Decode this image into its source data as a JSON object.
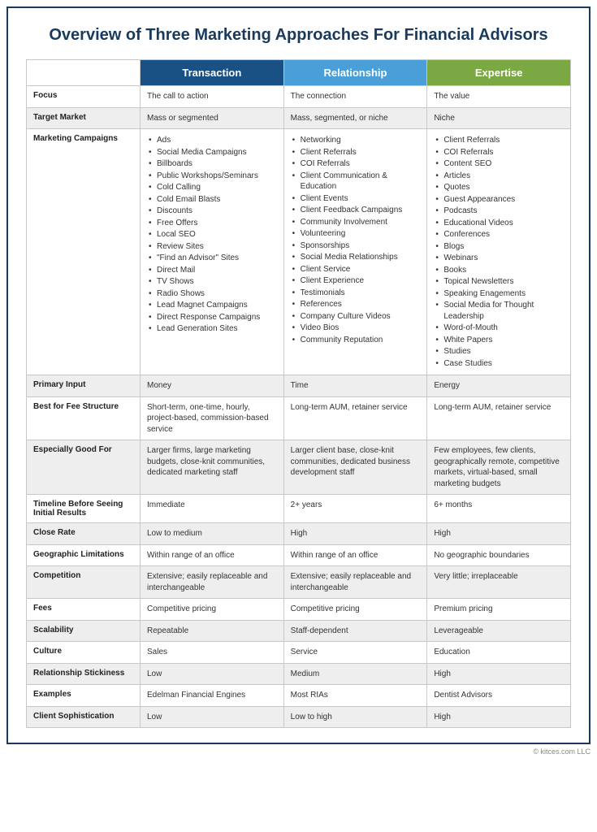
{
  "title": "Overview of Three Marketing Approaches For Financial Advisors",
  "copyright": "© kitces.com LLC",
  "colors": {
    "frame_border": "#1a3a5c",
    "title_color": "#1a3a5c",
    "header_transaction": "#1a5184",
    "header_relationship": "#4a9fd8",
    "header_expertise": "#7ba843",
    "row_shade": "#eeeeee",
    "cell_border": "#c8c8c8"
  },
  "column_widths": [
    "140px",
    "auto",
    "auto",
    "auto"
  ],
  "columns": [
    "Transaction",
    "Relationship",
    "Expertise"
  ],
  "rows": [
    {
      "label": "Focus",
      "shade": false,
      "type": "text",
      "cells": [
        "The call to action",
        "The connection",
        "The value"
      ]
    },
    {
      "label": "Target Market",
      "shade": true,
      "type": "text",
      "cells": [
        "Mass or segmented",
        "Mass, segmented, or niche",
        "Niche"
      ]
    },
    {
      "label": "Marketing Campaigns",
      "shade": false,
      "type": "list",
      "cells": [
        [
          "Ads",
          "Social Media Campaigns",
          "Billboards",
          "Public Workshops/Seminars",
          "Cold Calling",
          "Cold Email Blasts",
          "Discounts",
          "Free Offers",
          "Local SEO",
          "Review Sites",
          "\"Find an Advisor\" Sites",
          "Direct Mail",
          "TV Shows",
          "Radio Shows",
          "Lead Magnet Campaigns",
          "Direct Response Campaigns",
          "Lead Generation Sites"
        ],
        [
          "Networking",
          "Client Referrals",
          "COI Referrals",
          "Client Communication & Education",
          "Client Events",
          "Client Feedback Campaigns",
          "Community Involvement",
          "Volunteering",
          "Sponsorships",
          "Social Media Relationships",
          "Client Service",
          "Client Experience",
          "Testimonials",
          "References",
          "Company Culture Videos",
          "Video Bios",
          "Community Reputation"
        ],
        [
          "Client Referrals",
          "COI Referrals",
          "Content SEO",
          "Articles",
          "Quotes",
          "Guest Appearances",
          "Podcasts",
          "Educational Videos",
          "Conferences",
          "Blogs",
          "Webinars",
          "Books",
          "Topical Newsletters",
          "Speaking Enagements",
          "Social Media for Thought Leadership",
          "Word-of-Mouth",
          "White Papers",
          "Studies",
          "Case Studies"
        ]
      ]
    },
    {
      "label": "Primary Input",
      "shade": true,
      "type": "text",
      "cells": [
        "Money",
        "Time",
        "Energy"
      ]
    },
    {
      "label": "Best for Fee Structure",
      "shade": false,
      "type": "text",
      "cells": [
        "Short-term, one-time, hourly, project-based, commission-based service",
        "Long-term AUM, retainer service",
        "Long-term AUM, retainer service"
      ]
    },
    {
      "label": "Especially Good For",
      "shade": true,
      "type": "text",
      "cells": [
        "Larger firms, large marketing budgets, close-knit communities, dedicated marketing staff",
        "Larger client base, close-knit communities, dedicated business development staff",
        "Few employees, few clients, geographically remote, competitive markets, virtual-based, small marketing budgets"
      ]
    },
    {
      "label": "Timeline Before Seeing Initial Results",
      "shade": false,
      "type": "text",
      "cells": [
        "Immediate",
        "2+ years",
        "6+ months"
      ]
    },
    {
      "label": "Close Rate",
      "shade": true,
      "type": "text",
      "cells": [
        "Low to medium",
        "High",
        "High"
      ]
    },
    {
      "label": "Geographic Limitations",
      "shade": false,
      "type": "text",
      "cells": [
        "Within range of an office",
        "Within range of an office",
        "No geographic boundaries"
      ]
    },
    {
      "label": "Competition",
      "shade": true,
      "type": "text",
      "cells": [
        "Extensive; easily replaceable and interchangeable",
        "Extensive; easily replaceable and interchangeable",
        "Very little; irreplaceable"
      ]
    },
    {
      "label": "Fees",
      "shade": false,
      "type": "text",
      "cells": [
        "Competitive pricing",
        "Competitive pricing",
        "Premium pricing"
      ]
    },
    {
      "label": "Scalability",
      "shade": true,
      "type": "text",
      "cells": [
        "Repeatable",
        "Staff-dependent",
        "Leverageable"
      ]
    },
    {
      "label": "Culture",
      "shade": false,
      "type": "text",
      "cells": [
        "Sales",
        "Service",
        "Education"
      ]
    },
    {
      "label": "Relationship Stickiness",
      "shade": true,
      "type": "text",
      "cells": [
        "Low",
        "Medium",
        "High"
      ]
    },
    {
      "label": "Examples",
      "shade": false,
      "type": "text",
      "cells": [
        "Edelman Financial Engines",
        "Most RIAs",
        "Dentist Advisors"
      ]
    },
    {
      "label": "Client Sophistication",
      "shade": true,
      "type": "text",
      "cells": [
        "Low",
        "Low to high",
        "High"
      ]
    }
  ]
}
